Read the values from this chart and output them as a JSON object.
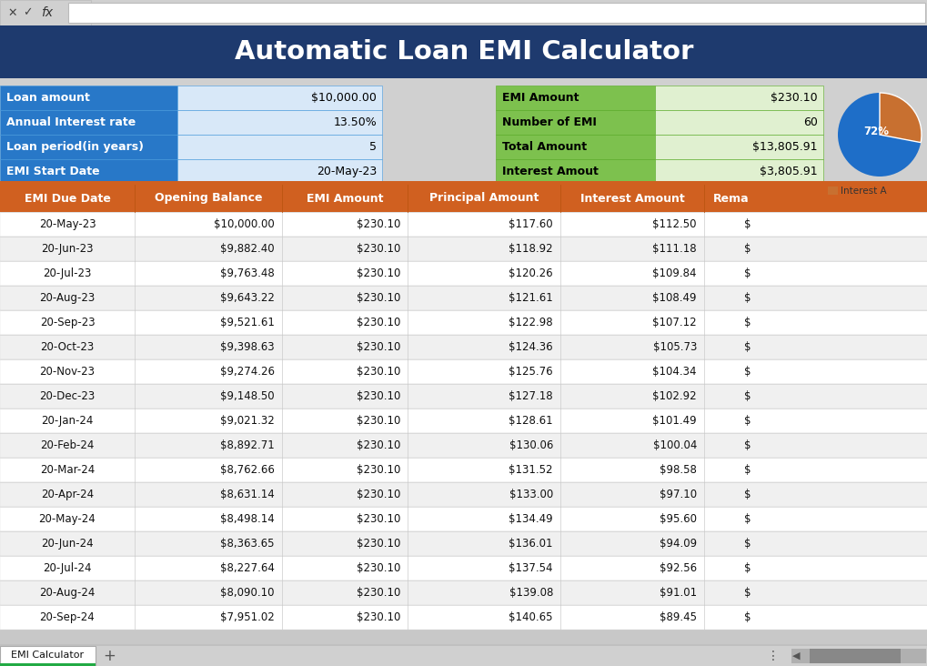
{
  "title": "Automatic Loan EMI Calculator",
  "title_bg": "#1e3a6e",
  "title_color": "#ffffff",
  "toolbar_bg": "#d8d8d8",
  "left_labels": [
    "Loan amount",
    "Annual Interest rate",
    "Loan period(in years)",
    "EMI Start Date"
  ],
  "left_values": [
    "$10,000.00",
    "13.50%",
    "5",
    "20-May-23"
  ],
  "left_label_bg": "#2878c8",
  "left_value_bg": "#d8e8f8",
  "left_label_color": "#ffffff",
  "left_value_color": "#000000",
  "right_labels": [
    "EMI Amount",
    "Number of EMI",
    "Total Amount",
    "Interest Amout"
  ],
  "right_values": [
    "$230.10",
    "60",
    "$13,805.91",
    "$3,805.91"
  ],
  "right_label_bg": "#7dc14e",
  "right_value_bg": "#e0f0d0",
  "right_label_color": "#000000",
  "right_value_color": "#000000",
  "pie_blue": "#1e6ec8",
  "pie_orange": "#c87030",
  "pie_pct": 72,
  "pie_label": "72%",
  "legend_label": "Interest A",
  "legend_color": "#c87030",
  "header_bg": "#d06020",
  "header_color": "#ffffff",
  "header_cols": [
    "EMI Due Date",
    "Opening Balance",
    "EMI Amount",
    "Principal Amount",
    "Interest Amount",
    "Rema"
  ],
  "table_bg_even": "#ffffff",
  "table_bg_odd": "#f0f0f0",
  "separator_color": "#d06020",
  "table_rows": [
    [
      "20-May-23",
      "$10,000.00",
      "$230.10",
      "$117.60",
      "$112.50",
      "$"
    ],
    [
      "20-Jun-23",
      "$9,882.40",
      "$230.10",
      "$118.92",
      "$111.18",
      "$"
    ],
    [
      "20-Jul-23",
      "$9,763.48",
      "$230.10",
      "$120.26",
      "$109.84",
      "$"
    ],
    [
      "20-Aug-23",
      "$9,643.22",
      "$230.10",
      "$121.61",
      "$108.49",
      "$"
    ],
    [
      "20-Sep-23",
      "$9,521.61",
      "$230.10",
      "$122.98",
      "$107.12",
      "$"
    ],
    [
      "20-Oct-23",
      "$9,398.63",
      "$230.10",
      "$124.36",
      "$105.73",
      "$"
    ],
    [
      "20-Nov-23",
      "$9,274.26",
      "$230.10",
      "$125.76",
      "$104.34",
      "$"
    ],
    [
      "20-Dec-23",
      "$9,148.50",
      "$230.10",
      "$127.18",
      "$102.92",
      "$"
    ],
    [
      "20-Jan-24",
      "$9,021.32",
      "$230.10",
      "$128.61",
      "$101.49",
      "$"
    ],
    [
      "20-Feb-24",
      "$8,892.71",
      "$230.10",
      "$130.06",
      "$100.04",
      "$"
    ],
    [
      "20-Mar-24",
      "$8,762.66",
      "$230.10",
      "$131.52",
      "$98.58",
      "$"
    ],
    [
      "20-Apr-24",
      "$8,631.14",
      "$230.10",
      "$133.00",
      "$97.10",
      "$"
    ],
    [
      "20-May-24",
      "$8,498.14",
      "$230.10",
      "$134.49",
      "$95.60",
      "$"
    ],
    [
      "20-Jun-24",
      "$8,363.65",
      "$230.10",
      "$136.01",
      "$94.09",
      "$"
    ],
    [
      "20-Jul-24",
      "$8,227.64",
      "$230.10",
      "$137.54",
      "$92.56",
      "$"
    ],
    [
      "20-Aug-24",
      "$8,090.10",
      "$230.10",
      "$139.08",
      "$91.01",
      "$"
    ],
    [
      "20-Sep-24",
      "$7,951.02",
      "$230.10",
      "$140.65",
      "$89.45",
      "$"
    ]
  ],
  "bottom_tab": "EMI Calculator",
  "sheet_bg": "#c8c8c8",
  "info_bg": "#d0d0d0",
  "white_bg": "#ffffff"
}
